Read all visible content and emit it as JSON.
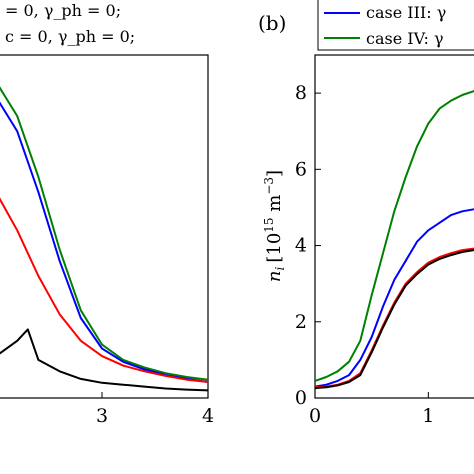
{
  "chart_data": [
    {
      "type": "line",
      "panel": "left (cropped)",
      "legend": {
        "placement": "top-left (cropped)",
        "entries": [
          "= 0, γ_ph = 0;",
          "c = 0, γ_ph = 0;"
        ]
      },
      "xticks": [
        "3",
        "4"
      ],
      "xlim": [
        2.0,
        4.0
      ],
      "ylim": [
        0,
        9
      ],
      "series": [
        {
          "color": "#008000",
          "x": [
            2.0,
            2.2,
            2.4,
            2.6,
            2.8,
            3.0,
            3.2,
            3.4,
            3.6,
            3.8,
            4.0
          ],
          "values": [
            8.3,
            7.4,
            5.8,
            3.9,
            2.3,
            1.4,
            1.0,
            0.8,
            0.65,
            0.55,
            0.48
          ]
        },
        {
          "color": "#0000ff",
          "x": [
            2.0,
            2.2,
            2.4,
            2.6,
            2.8,
            3.0,
            3.2,
            3.4,
            3.6,
            3.8,
            4.0
          ],
          "values": [
            7.9,
            7.0,
            5.4,
            3.6,
            2.1,
            1.3,
            0.95,
            0.75,
            0.6,
            0.5,
            0.42
          ]
        },
        {
          "color": "#ff0000",
          "x": [
            2.0,
            2.2,
            2.4,
            2.6,
            2.8,
            3.0,
            3.2,
            3.4,
            3.6,
            3.8,
            4.0
          ],
          "values": [
            5.4,
            4.4,
            3.2,
            2.2,
            1.5,
            1.1,
            0.85,
            0.7,
            0.58,
            0.48,
            0.42
          ]
        },
        {
          "color": "#000000",
          "x": [
            2.0,
            2.2,
            2.3,
            2.4,
            2.6,
            2.8,
            3.0,
            3.2,
            3.4,
            3.6,
            3.8,
            4.0
          ],
          "values": [
            1.1,
            1.5,
            1.8,
            1.0,
            0.7,
            0.5,
            0.4,
            0.35,
            0.3,
            0.25,
            0.22,
            0.2
          ]
        }
      ]
    },
    {
      "type": "line",
      "panel": "(b)",
      "legend": {
        "placement": "top-right",
        "entries": [
          "case III: γ",
          "case IV: γ"
        ]
      },
      "ylabel": "n_i [10^15 m^-3]",
      "ylabel_parts": {
        "var": "n",
        "sub": "i",
        "pre": "[10",
        "exp1": "15",
        "mid": " m",
        "exp2": "−3",
        "post": "]"
      },
      "xticks": [
        "0",
        "1"
      ],
      "yticks": [
        "0",
        "2",
        "4",
        "6",
        "8"
      ],
      "xlim": [
        0,
        1.5
      ],
      "ylim": [
        0,
        9
      ],
      "series": [
        {
          "name": "case IV: γ",
          "color": "#008000",
          "x": [
            0,
            0.1,
            0.2,
            0.3,
            0.4,
            0.5,
            0.6,
            0.7,
            0.8,
            0.9,
            1.0,
            1.1,
            1.2,
            1.3,
            1.4,
            1.5
          ],
          "values": [
            0.45,
            0.55,
            0.7,
            0.95,
            1.5,
            2.7,
            3.8,
            4.9,
            5.8,
            6.6,
            7.2,
            7.6,
            7.8,
            7.95,
            8.05,
            8.1
          ]
        },
        {
          "name": "case III: γ",
          "color": "#0000ff",
          "x": [
            0,
            0.1,
            0.2,
            0.3,
            0.4,
            0.5,
            0.6,
            0.7,
            0.8,
            0.9,
            1.0,
            1.1,
            1.2,
            1.3,
            1.4,
            1.5
          ],
          "values": [
            0.3,
            0.35,
            0.45,
            0.6,
            1.0,
            1.6,
            2.4,
            3.1,
            3.6,
            4.1,
            4.4,
            4.6,
            4.8,
            4.9,
            4.95,
            5.0
          ]
        },
        {
          "color": "#ff0000",
          "x": [
            0,
            0.1,
            0.2,
            0.3,
            0.4,
            0.5,
            0.6,
            0.7,
            0.8,
            0.9,
            1.0,
            1.1,
            1.2,
            1.3,
            1.4,
            1.5
          ],
          "values": [
            0.28,
            0.3,
            0.35,
            0.45,
            0.65,
            1.25,
            1.9,
            2.5,
            3.0,
            3.3,
            3.55,
            3.7,
            3.8,
            3.88,
            3.92,
            3.95
          ]
        },
        {
          "color": "#000000",
          "x": [
            0,
            0.1,
            0.2,
            0.3,
            0.4,
            0.5,
            0.6,
            0.7,
            0.8,
            0.9,
            1.0,
            1.1,
            1.2,
            1.3,
            1.4,
            1.5
          ],
          "values": [
            0.26,
            0.28,
            0.33,
            0.42,
            0.6,
            1.2,
            1.85,
            2.45,
            2.95,
            3.25,
            3.5,
            3.65,
            3.75,
            3.83,
            3.88,
            3.9
          ]
        }
      ]
    }
  ],
  "panel_b": {
    "label": "(b)"
  }
}
